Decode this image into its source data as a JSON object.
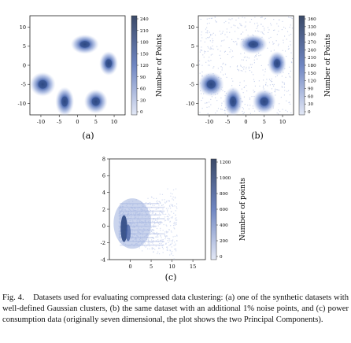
{
  "figure": {
    "panels": [
      {
        "label": "(a)",
        "colorbar_label": "Number of Points",
        "colorbar_ticks": [
          "240",
          "210",
          "180",
          "150",
          "120",
          "90",
          "60",
          "30",
          "0"
        ]
      },
      {
        "label": "(b)",
        "colorbar_label": "Number of Points",
        "colorbar_ticks": [
          "360",
          "330",
          "300",
          "270",
          "240",
          "210",
          "180",
          "150",
          "120",
          "90",
          "60",
          "30",
          "0"
        ]
      },
      {
        "label": "(c)",
        "colorbar_label": "Number of points",
        "colorbar_ticks": [
          "1200",
          "1000",
          "800",
          "600",
          "400",
          "200",
          "0"
        ]
      }
    ],
    "caption": {
      "prefix": "Fig. 4.",
      "text": "Datasets used for evaluating compressed data clustering: (a) one of the synthetic datasets with well-defined Gaussian clusters, (b) the same dataset with an additional 1% noise points, and (c) power consumption data (originally seven dimensional, the plot shows the two Principal Components)."
    }
  },
  "chart_data": [
    {
      "type": "heatmap",
      "xticks": [
        "-10",
        "-5",
        "0",
        "5",
        "10"
      ],
      "yticks": [
        "10",
        "5",
        "0",
        "-5",
        "-10"
      ],
      "xlim": [
        -13,
        13
      ],
      "ylim": [
        -13,
        13
      ],
      "clusters": [
        {
          "x": 2,
          "y": 5.5,
          "sx": 1.2,
          "sy": 0.8
        },
        {
          "x": 8.5,
          "y": 0.5,
          "sx": 0.8,
          "sy": 1.0
        },
        {
          "x": -9.5,
          "y": -5,
          "sx": 1.1,
          "sy": 1.0
        },
        {
          "x": -3.5,
          "y": -9.5,
          "sx": 0.8,
          "sy": 1.2
        },
        {
          "x": 5,
          "y": -9.5,
          "sx": 1.0,
          "sy": 1.0
        }
      ],
      "noise": false,
      "colorbar_max": 240
    },
    {
      "type": "heatmap",
      "xticks": [
        "-10",
        "-5",
        "0",
        "5",
        "10"
      ],
      "yticks": [
        "10",
        "5",
        "0",
        "-5",
        "-10"
      ],
      "xlim": [
        -13,
        13
      ],
      "ylim": [
        -13,
        13
      ],
      "clusters": [
        {
          "x": 2,
          "y": 5.5,
          "sx": 1.2,
          "sy": 0.8
        },
        {
          "x": 8.5,
          "y": 0.5,
          "sx": 0.8,
          "sy": 1.0
        },
        {
          "x": -9.5,
          "y": -5,
          "sx": 1.1,
          "sy": 1.0
        },
        {
          "x": -3.5,
          "y": -9.5,
          "sx": 0.8,
          "sy": 1.2
        },
        {
          "x": 5,
          "y": -9.5,
          "sx": 1.0,
          "sy": 1.0
        }
      ],
      "noise": true,
      "colorbar_max": 360
    },
    {
      "type": "heatmap",
      "xticks": [
        "0",
        "5",
        "10",
        "15"
      ],
      "yticks": [
        "8",
        "6",
        "4",
        "2",
        "0",
        "-2",
        "-4"
      ],
      "xlim": [
        -5,
        18
      ],
      "ylim": [
        -4,
        8
      ],
      "colorbar_max": 1300
    }
  ],
  "colors": {
    "dense": "#2e4a86",
    "light": "#c5d0ec",
    "colorbar_top": "#3d4a66",
    "colorbar_bottom": "#dfe5f5"
  }
}
